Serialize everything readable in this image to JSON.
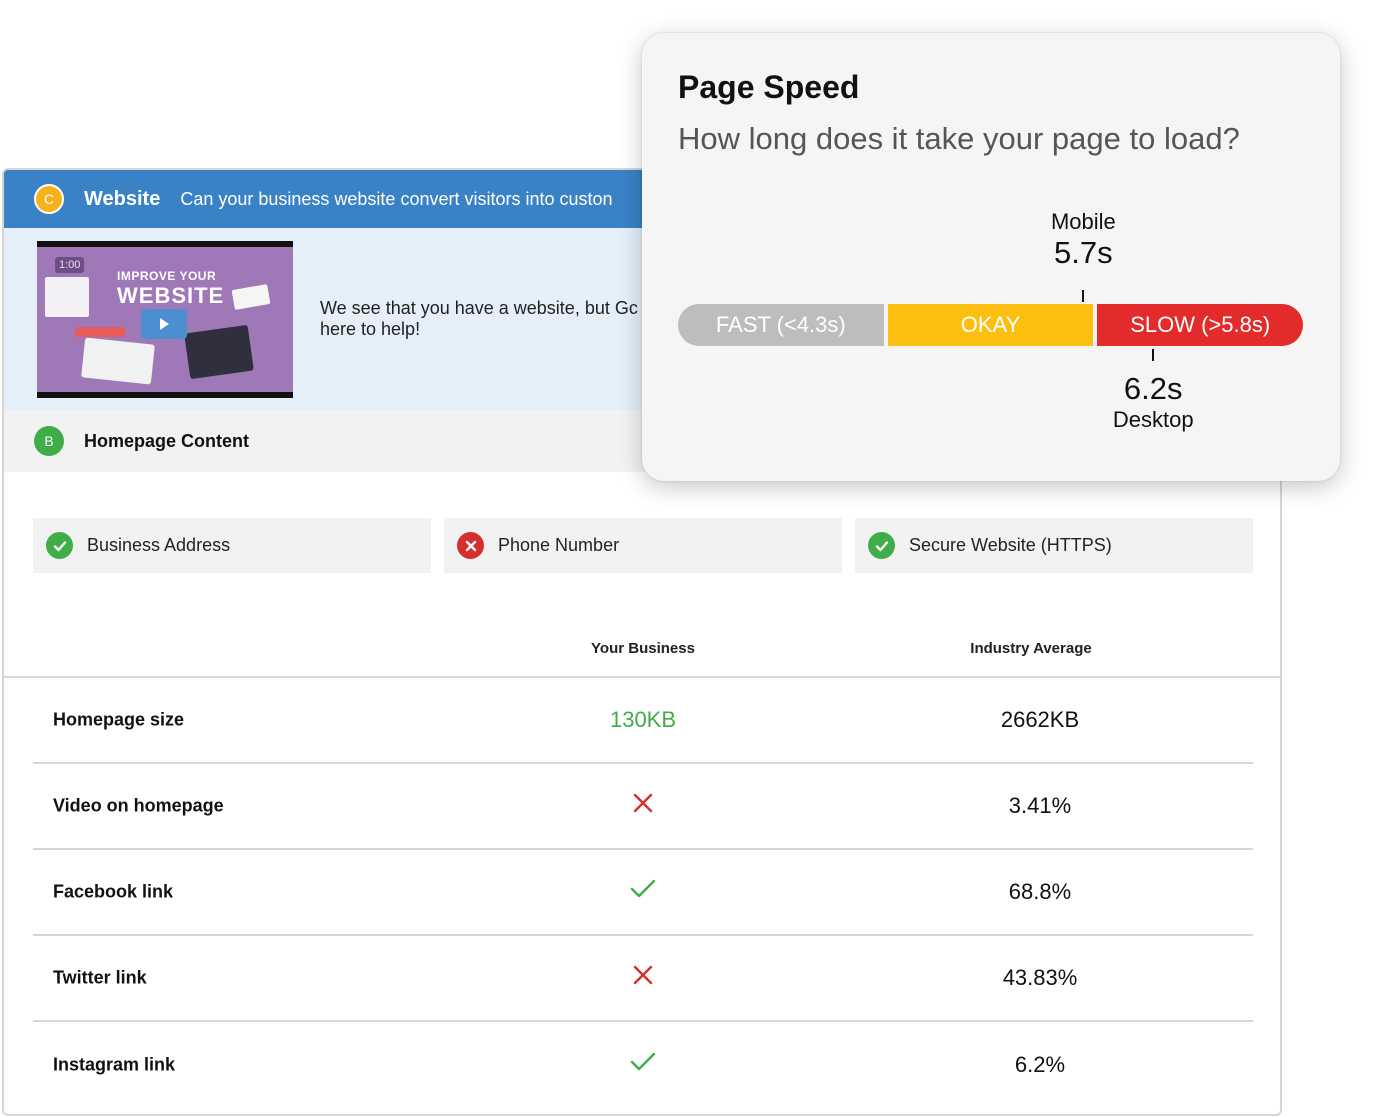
{
  "website_section": {
    "grade": "C",
    "title": "Website",
    "subtitle": "Can your business website convert visitors into custon",
    "video": {
      "timestamp": "1:00",
      "caption_line1": "IMPROVE YOUR",
      "caption_line2": "WEBSITE",
      "play_icon": "play-icon"
    },
    "banner_text": "We see that you have a website, but Gc here to help!"
  },
  "homepage_section": {
    "grade": "B",
    "title": "Homepage Content"
  },
  "checks": [
    {
      "label": "Business Address",
      "status": "ok",
      "icon": "check-icon"
    },
    {
      "label": "Phone Number",
      "status": "fail",
      "icon": "x-icon"
    },
    {
      "label": "Secure Website (HTTPS)",
      "status": "ok",
      "icon": "check-icon"
    }
  ],
  "table": {
    "columns": [
      "Your Business",
      "Industry Average"
    ],
    "rows": [
      {
        "label": "Homepage size",
        "business": "130KB",
        "business_type": "text-good",
        "industry": "2662KB"
      },
      {
        "label": "Video on homepage",
        "business": "",
        "business_type": "cross",
        "industry": "3.41%"
      },
      {
        "label": "Facebook link",
        "business": "",
        "business_type": "check",
        "industry": "68.8%"
      },
      {
        "label": "Twitter link",
        "business": "",
        "business_type": "cross",
        "industry": "43.83%"
      },
      {
        "label": "Instagram link",
        "business": "",
        "business_type": "check",
        "industry": "6.2%"
      }
    ]
  },
  "page_speed": {
    "title": "Page Speed",
    "question": "How long does it take your page to load?",
    "scale": [
      {
        "label": "FAST (<4.3s)",
        "color": "#bdbdbd",
        "max_seconds": 4.3
      },
      {
        "label": "OKAY",
        "color": "#fdbf0f"
      },
      {
        "label": "SLOW (>5.8s)",
        "color": "#e32b2b",
        "min_seconds": 5.8
      }
    ],
    "mobile": {
      "label": "Mobile",
      "value": "5.7s",
      "seconds": 5.7
    },
    "desktop": {
      "label": "Desktop",
      "value": "6.2s",
      "seconds": 6.2
    }
  },
  "colors": {
    "header_blue": "#3a82c6",
    "good_green": "#3fae49",
    "bad_red": "#d62f2f",
    "grade_c": "#f5b21b"
  }
}
